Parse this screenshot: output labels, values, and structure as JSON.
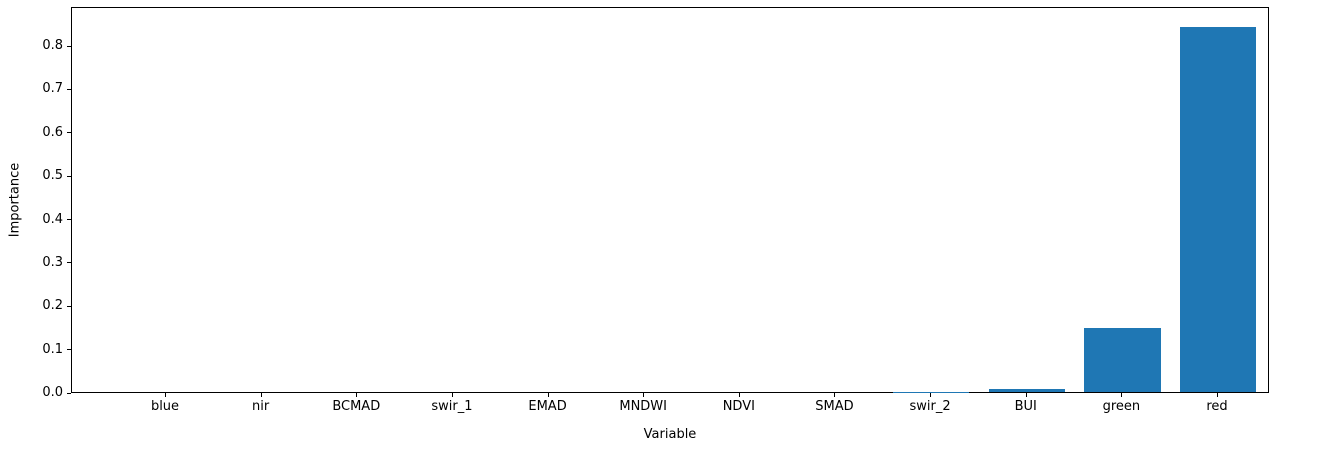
{
  "chart_data": {
    "type": "bar",
    "categories": [
      "blue",
      "nir",
      "BCMAD",
      "swir_1",
      "EMAD",
      "MNDWI",
      "NDVI",
      "SMAD",
      "swir_2",
      "BUI",
      "green",
      "red"
    ],
    "values": [
      0.0,
      0.0,
      0.0,
      0.0,
      0.0,
      0.0,
      0.0,
      0.0,
      0.001,
      0.006,
      0.148,
      0.841
    ],
    "title": "",
    "xlabel": "Variable",
    "ylabel": "Importance",
    "ylim": [
      0,
      0.89
    ],
    "yticks": [
      "0.0",
      "0.1",
      "0.2",
      "0.3",
      "0.4",
      "0.5",
      "0.6",
      "0.7",
      "0.8"
    ],
    "bar_color": "#1f77b4",
    "axis_color": "#000000",
    "background_color": "#ffffff",
    "grid": false,
    "legend": false
  }
}
